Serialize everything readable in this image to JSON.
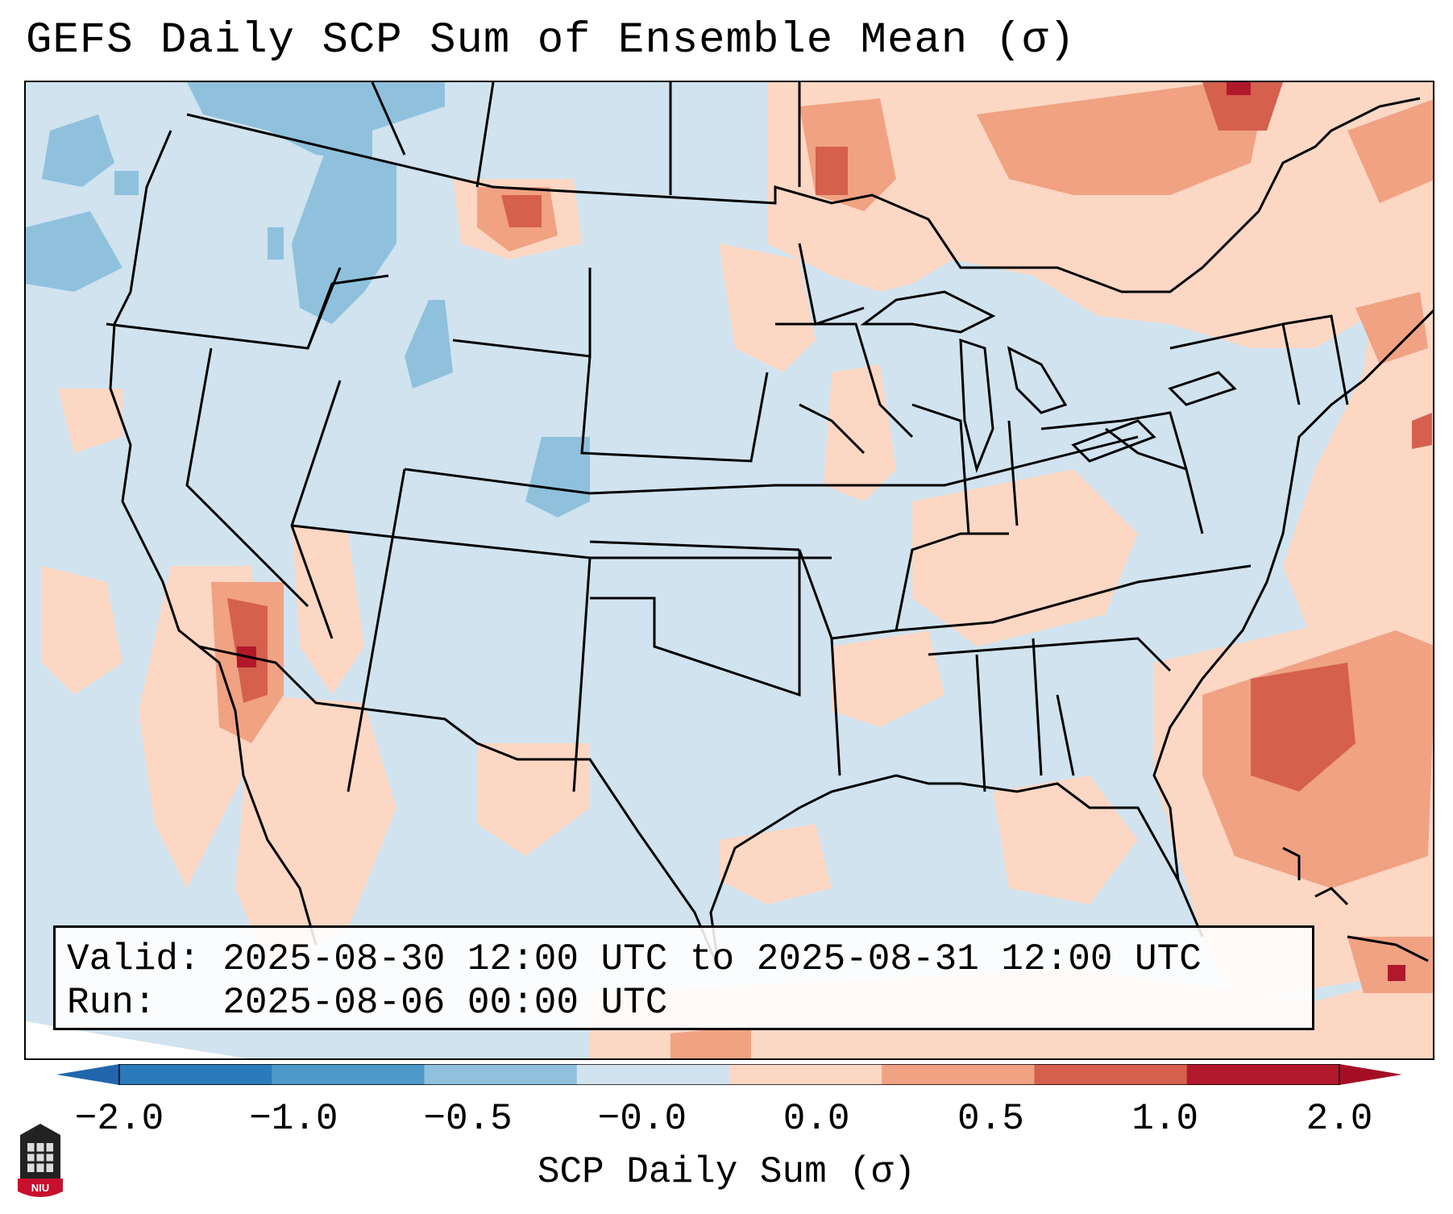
{
  "title": "GEFS Daily SCP Sum of Ensemble Mean (σ)",
  "infobox": {
    "valid_label": "Valid:",
    "valid_value": "2025-08-30 12:00 UTC to 2025-08-31 12:00 UTC",
    "run_label": "Run:",
    "run_value": "2025-08-06 00:00 UTC"
  },
  "colorbar": {
    "label": "SCP Daily Sum (σ)",
    "ticks": [
      "−2.0",
      "−1.0",
      "−0.5",
      "−0.0",
      "0.0",
      "0.5",
      "1.0",
      "2.0"
    ],
    "colors": [
      "#2b7bba",
      "#4d9ac8",
      "#8fc1dd",
      "#d0e3ef",
      "#fbd7c4",
      "#f0a283",
      "#d5604d",
      "#b2182b"
    ],
    "extend_low_color": "#2166ac",
    "extend_high_color": "#a50f26"
  },
  "logo": {
    "text": "NIU"
  }
}
